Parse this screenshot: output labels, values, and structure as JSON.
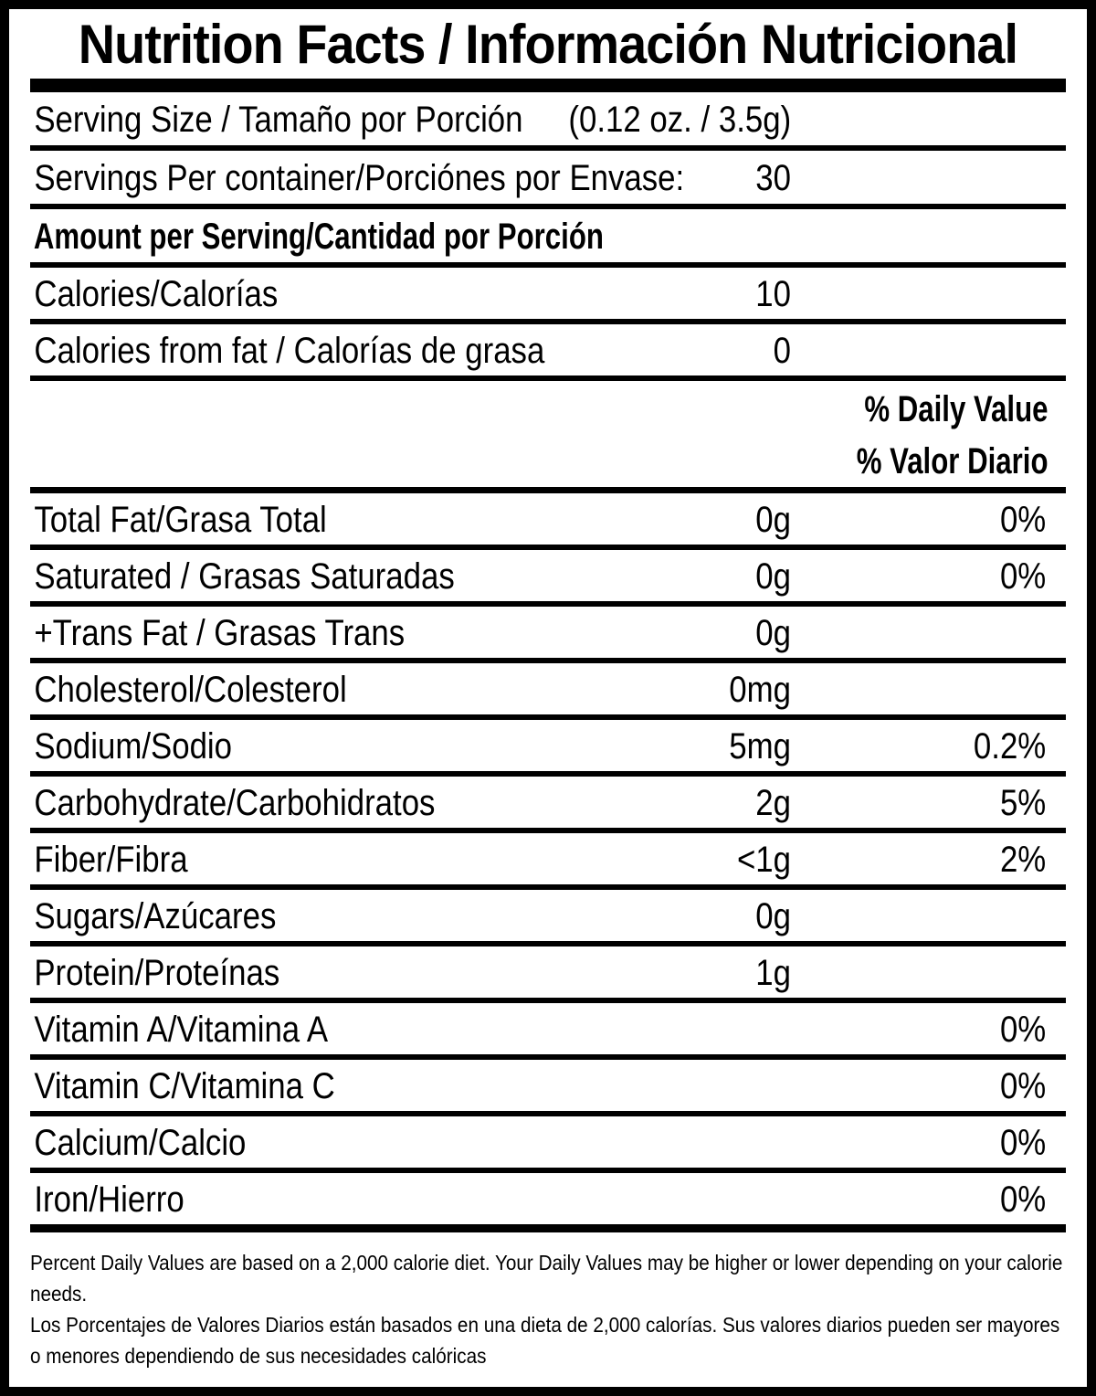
{
  "title": "Nutrition Facts / Información Nutricional",
  "serving": {
    "size_label": "Serving Size / Tamaño por Porción",
    "size_value": "(0.12 oz. / 3.5g)",
    "per_container_label": "Servings Per container/Porciónes por Envase:",
    "per_container_value": "30"
  },
  "amount_per_serving_label": "Amount per Serving/Cantidad por Porción",
  "calories_rows": [
    {
      "label": "Calories/Calorías",
      "value": "10"
    },
    {
      "label": "Calories from fat / Calorías de grasa",
      "value": "0"
    }
  ],
  "daily_value_headers": {
    "en": "% Daily Value",
    "es": "% Valor Diario"
  },
  "nutrients": [
    {
      "label": "Total Fat/Grasa Total",
      "amount": "0g",
      "dv": "0%"
    },
    {
      "label": "Saturated / Grasas Saturadas",
      "amount": "0g",
      "dv": "0%"
    },
    {
      "label": "+Trans Fat / Grasas Trans",
      "amount": "0g"
    },
    {
      "label": "Cholesterol/Colesterol",
      "amount": "0mg"
    },
    {
      "label": "Sodium/Sodio",
      "amount": "5mg",
      "dv": "0.2%"
    },
    {
      "label": "Carbohydrate/Carbohidratos",
      "amount": "2g",
      "dv": "5%"
    },
    {
      "label": "Fiber/Fibra",
      "amount": "<1g",
      "dv": "2%"
    },
    {
      "label": "Sugars/Azúcares",
      "amount": "0g"
    },
    {
      "label": "Protein/Proteínas",
      "amount": "1g"
    },
    {
      "label": "Vitamin A/Vitamina A",
      "dv": "0%"
    },
    {
      "label": "Vitamin C/Vitamina C",
      "dv": "0%"
    },
    {
      "label": "Calcium/Calcio",
      "dv": "0%"
    },
    {
      "label": "Iron/Hierro",
      "dv": "0%"
    }
  ],
  "footnotes": {
    "en": "Percent Daily Values are based on a 2,000 calorie diet. Your Daily Values may be higher or lower depending on your calorie needs.",
    "es": "Los Porcentajes de Valores Diarios están basados en una dieta de 2,000 calorías. Sus valores diarios pueden ser mayores o menores dependiendo de sus necesidades calóricas"
  },
  "colors": {
    "ink": "#000000",
    "paper": "#ffffff"
  }
}
